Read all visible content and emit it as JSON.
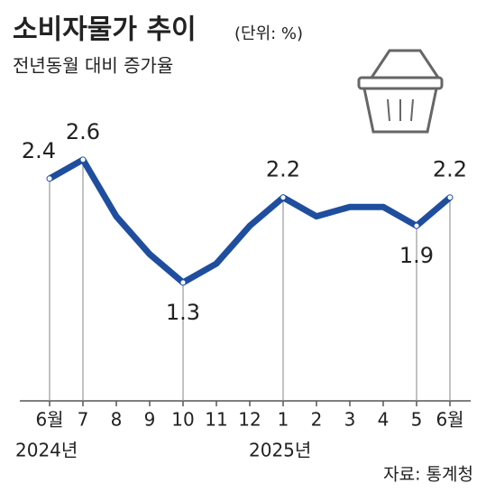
{
  "chart_data": {
    "type": "line",
    "title": "소비자물가 추이",
    "unit": "(단위: %)",
    "subtitle": "전년동월 대비 증가율",
    "source": "자료: 통계청",
    "categories": [
      "6월",
      "7",
      "8",
      "9",
      "10",
      "11",
      "12",
      "1",
      "2",
      "3",
      "4",
      "5",
      "6월"
    ],
    "year_labels": [
      "2024년",
      null,
      null,
      null,
      null,
      null,
      null,
      "2025년",
      null,
      null,
      null,
      null,
      null
    ],
    "values": [
      2.4,
      2.6,
      2.0,
      1.6,
      1.3,
      1.5,
      1.9,
      2.2,
      2.0,
      2.1,
      2.1,
      1.9,
      2.2
    ],
    "value_labels": [
      "2.4",
      "2.6",
      null,
      null,
      "1.3",
      null,
      null,
      "2.2",
      null,
      null,
      null,
      "1.9",
      "2.2"
    ],
    "color": "#1f4e9f",
    "ylim": [
      0,
      3
    ]
  }
}
